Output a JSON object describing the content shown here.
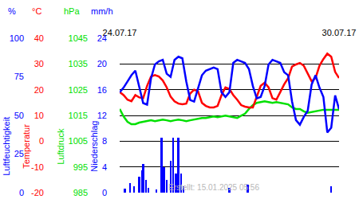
{
  "chart_data": {
    "type": "line",
    "grid": true,
    "legend": "none",
    "x": [
      0,
      3,
      6,
      9,
      12,
      15,
      18,
      21,
      24,
      27,
      30,
      33,
      36,
      39,
      42,
      45,
      48,
      51,
      54,
      57,
      60,
      63,
      66,
      69,
      72,
      75,
      78,
      81,
      84,
      87,
      90,
      93,
      96,
      99,
      102,
      105,
      108,
      111,
      114,
      117,
      120,
      123,
      126,
      129,
      132,
      135,
      138,
      141,
      144,
      147,
      150,
      153,
      156,
      159,
      162,
      165,
      168
    ],
    "xlim": [
      0,
      168
    ],
    "xticks": [
      {
        "value": 0,
        "label": "24.07.17"
      },
      {
        "value": 168,
        "label": "30.07.17"
      }
    ],
    "annotations": [
      {
        "text": "Erstellt: 15.01.2025 05:56"
      }
    ],
    "series": [
      {
        "name": "Niederschlag",
        "unit": "mm/h",
        "color": "#0000ff",
        "type": "bar",
        "ylim": [
          0,
          24
        ],
        "yticks": [
          0,
          4,
          8,
          12,
          16,
          20,
          24
        ],
        "x": [
          4,
          8,
          11,
          15,
          17,
          18,
          20,
          22,
          28,
          32,
          34,
          36,
          39,
          41,
          43,
          45,
          47,
          49,
          84,
          98,
          162
        ],
        "values": [
          0.6,
          1.5,
          1.0,
          2.5,
          3.5,
          4.5,
          2.0,
          0.8,
          0.5,
          8.5,
          4.0,
          2.0,
          5.0,
          8.5,
          3.0,
          8.5,
          3.0,
          1.0,
          0.8,
          1.2,
          1.0
        ]
      },
      {
        "name": "Luftdruck",
        "unit": "hPa",
        "color": "#00e000",
        "type": "line",
        "ylim": [
          985,
          1045
        ],
        "yticks": [
          985,
          995,
          1005,
          1015,
          1025,
          1035,
          1045
        ],
        "values": [
          1017.5,
          1014.6,
          1012.5,
          1011.6,
          1011.6,
          1012.2,
          1012.5,
          1012.8,
          1013.1,
          1012.8,
          1013.1,
          1013.4,
          1013.1,
          1012.8,
          1013.1,
          1013.4,
          1013.1,
          1012.8,
          1013.1,
          1013.4,
          1013.7,
          1014.0,
          1014.0,
          1014.3,
          1014.6,
          1014.3,
          1014.6,
          1014.9,
          1014.6,
          1014.3,
          1014.0,
          1014.9,
          1015.7,
          1017.5,
          1019.0,
          1019.9,
          1020.2,
          1020.5,
          1020.2,
          1019.9,
          1020.2,
          1019.9,
          1019.6,
          1019.3,
          1018.1,
          1017.5,
          1017.5,
          1016.6,
          1016.0,
          1016.3,
          1016.6,
          1016.9,
          1017.2,
          1017.2,
          1017.2,
          1017.2,
          1017.2
        ]
      },
      {
        "name": "Temperatur",
        "unit": "°C",
        "color": "#ff0000",
        "type": "line",
        "ylim": [
          -20,
          40
        ],
        "yticks": [
          -20,
          -10,
          0,
          10,
          20,
          30,
          40
        ],
        "values": [
          19.1,
          17.9,
          16.1,
          15.5,
          17.9,
          17.0,
          16.7,
          21.5,
          25.1,
          25.7,
          25.1,
          23.6,
          20.9,
          17.3,
          15.5,
          14.6,
          14.3,
          14.6,
          18.5,
          20.0,
          19.4,
          14.9,
          13.7,
          13.1,
          13.1,
          13.7,
          17.9,
          20.9,
          20.3,
          17.9,
          16.1,
          14.0,
          13.4,
          13.1,
          13.1,
          17.0,
          21.5,
          22.7,
          20.9,
          16.7,
          16.1,
          19.1,
          22.1,
          24.5,
          29.0,
          29.8,
          30.4,
          29.3,
          26.3,
          23.3,
          24.5,
          29.3,
          31.9,
          34.0,
          32.8,
          26.9,
          24.5
        ]
      },
      {
        "name": "Luftfeuchtigkeit",
        "unit": "%",
        "color": "#0000ff",
        "type": "line",
        "ylim": [
          0,
          100
        ],
        "yticks": [
          0,
          25,
          50,
          75,
          100
        ],
        "values": [
          65,
          68,
          72,
          76,
          79,
          68,
          58,
          57,
          74,
          83,
          85,
          86,
          77,
          75,
          86,
          88,
          87,
          72,
          60,
          59,
          68,
          76,
          79,
          80,
          81,
          80,
          65,
          62,
          65,
          84,
          86,
          85,
          84,
          80,
          69,
          61,
          62,
          69,
          83,
          86,
          85,
          84,
          78,
          76,
          59,
          47,
          44,
          49,
          53,
          70,
          76,
          68,
          62,
          39,
          42,
          63,
          54
        ]
      }
    ]
  }
}
